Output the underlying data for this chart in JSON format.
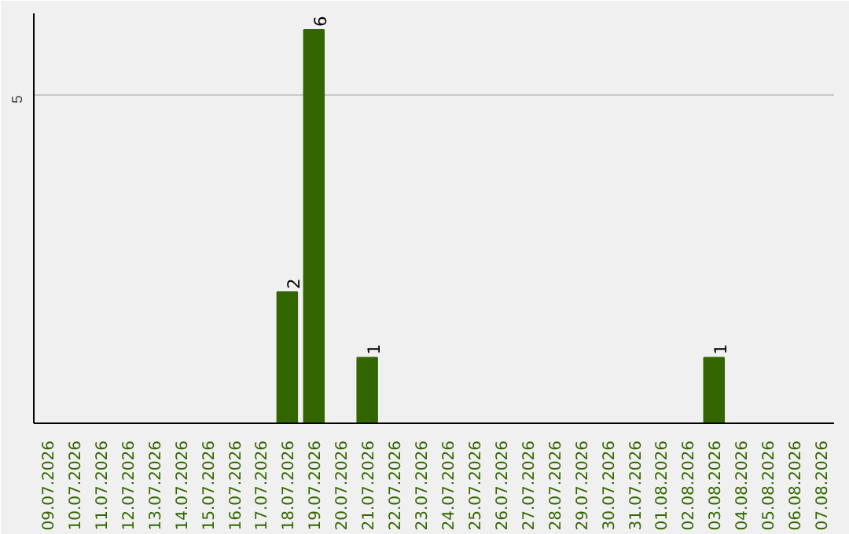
{
  "chart_data": {
    "type": "bar",
    "categories": [
      "09.07.2026",
      "10.07.2026",
      "11.07.2026",
      "12.07.2026",
      "13.07.2026",
      "14.07.2026",
      "15.07.2026",
      "16.07.2026",
      "17.07.2026",
      "18.07.2026",
      "19.07.2026",
      "20.07.2026",
      "21.07.2026",
      "22.07.2026",
      "23.07.2026",
      "24.07.2026",
      "25.07.2026",
      "26.07.2026",
      "27.07.2026",
      "28.07.2026",
      "29.07.2026",
      "30.07.2026",
      "31.07.2026",
      "01.08.2026",
      "02.08.2026",
      "03.08.2026",
      "04.08.2026",
      "05.08.2026",
      "06.08.2026",
      "07.08.2026"
    ],
    "values": [
      0,
      0,
      0,
      0,
      0,
      0,
      0,
      0,
      0,
      2,
      6,
      0,
      1,
      0,
      0,
      0,
      0,
      0,
      0,
      0,
      0,
      0,
      0,
      0,
      0,
      1,
      0,
      0,
      0,
      0
    ],
    "value_labels": [
      null,
      null,
      null,
      null,
      null,
      null,
      null,
      null,
      null,
      "2",
      "6",
      null,
      "1",
      null,
      null,
      null,
      null,
      null,
      null,
      null,
      null,
      null,
      null,
      null,
      null,
      "1",
      null,
      null,
      null,
      null
    ],
    "color": "#336600",
    "ylim": [
      0,
      6.25
    ],
    "yticks": [
      5
    ],
    "grid": "y"
  }
}
